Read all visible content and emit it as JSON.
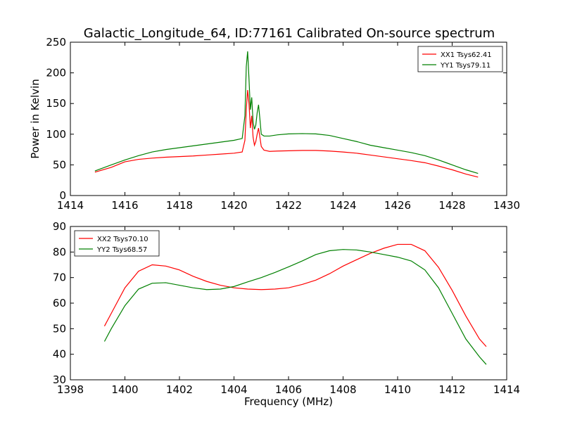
{
  "title": "Galactic_Longitude_64, ID:77161 Calibrated On-source spectrum",
  "chart_data": [
    {
      "type": "line",
      "ylabel": "Power in Kelvin",
      "xlabel": "",
      "xlim": [
        1414,
        1430
      ],
      "ylim": [
        0,
        250
      ],
      "xticks": [
        "1414",
        "1416",
        "1418",
        "1420",
        "1422",
        "1424",
        "1426",
        "1428",
        "1430"
      ],
      "yticks": [
        "0",
        "50",
        "100",
        "150",
        "200",
        "250"
      ],
      "legend": "top-right",
      "series": [
        {
          "name": "XX1 Tsys62.41",
          "color": "#ff0000",
          "x": [
            1414.9,
            1415.5,
            1416,
            1416.5,
            1417,
            1417.5,
            1418,
            1418.5,
            1419,
            1419.5,
            1420,
            1420.3,
            1420.4,
            1420.45,
            1420.5,
            1420.55,
            1420.6,
            1420.65,
            1420.7,
            1420.75,
            1420.8,
            1420.85,
            1420.9,
            1420.95,
            1421,
            1421.1,
            1421.3,
            1421.6,
            1422,
            1422.5,
            1423,
            1423.5,
            1424,
            1424.5,
            1425,
            1425.5,
            1426,
            1426.5,
            1427,
            1427.5,
            1428,
            1428.5,
            1428.95
          ],
          "values": [
            38,
            46,
            55,
            59,
            61,
            62.5,
            63.5,
            64.5,
            66,
            67.5,
            69,
            71,
            90,
            140,
            172,
            150,
            110,
            130,
            95,
            82,
            88,
            100,
            110,
            95,
            80,
            74,
            72,
            72.5,
            73,
            73.5,
            73.5,
            72.5,
            71,
            69,
            66,
            63,
            60,
            57,
            53.5,
            48,
            42,
            35,
            30
          ]
        },
        {
          "name": "YY1 Tsys79.11",
          "color": "#008000",
          "x": [
            1414.9,
            1415.5,
            1416,
            1416.5,
            1417,
            1417.5,
            1418,
            1418.5,
            1419,
            1419.5,
            1420,
            1420.3,
            1420.4,
            1420.45,
            1420.5,
            1420.55,
            1420.6,
            1420.65,
            1420.7,
            1420.75,
            1420.8,
            1420.85,
            1420.9,
            1420.95,
            1421,
            1421.1,
            1421.3,
            1421.6,
            1422,
            1422.5,
            1423,
            1423.5,
            1424,
            1424.5,
            1425,
            1425.5,
            1426,
            1426.5,
            1427,
            1427.5,
            1428,
            1428.5,
            1428.95
          ],
          "values": [
            40,
            50,
            58,
            65,
            71,
            75,
            78,
            81,
            84,
            87,
            90,
            93,
            130,
            210,
            235,
            190,
            140,
            160,
            120,
            108,
            115,
            135,
            148,
            125,
            100,
            97,
            97,
            99,
            100.5,
            101,
            100.5,
            98,
            93,
            88,
            82,
            78,
            74,
            70,
            65,
            58,
            50,
            42,
            36
          ]
        }
      ]
    },
    {
      "type": "line",
      "ylabel": "",
      "xlabel": "Frequency (MHz)",
      "xlim": [
        1398,
        1414
      ],
      "ylim": [
        30,
        90
      ],
      "xticks": [
        "1398",
        "1400",
        "1402",
        "1404",
        "1406",
        "1408",
        "1410",
        "1412",
        "1414"
      ],
      "yticks": [
        "30",
        "40",
        "50",
        "60",
        "70",
        "80",
        "90"
      ],
      "legend": "top-left",
      "series": [
        {
          "name": "XX2 Tsys70.10",
          "color": "#ff0000",
          "x": [
            1399.25,
            1399.5,
            1400,
            1400.5,
            1401,
            1401.5,
            1402,
            1402.5,
            1403,
            1403.5,
            1404,
            1404.5,
            1405,
            1405.5,
            1406,
            1406.5,
            1407,
            1407.5,
            1408,
            1408.5,
            1409,
            1409.5,
            1410,
            1410.5,
            1411,
            1411.5,
            1412,
            1412.5,
            1413,
            1413.25
          ],
          "values": [
            51,
            56,
            66,
            72.5,
            75,
            74.5,
            73,
            70.5,
            68.5,
            67,
            66,
            65.5,
            65.3,
            65.5,
            66,
            67.3,
            69,
            71.5,
            74.5,
            77,
            79.5,
            81.5,
            83,
            83,
            80.5,
            74,
            65,
            55,
            46,
            43
          ]
        },
        {
          "name": "YY2 Tsys68.57",
          "color": "#008000",
          "x": [
            1399.25,
            1399.5,
            1400,
            1400.5,
            1401,
            1401.5,
            1402,
            1402.5,
            1403,
            1403.5,
            1404,
            1404.5,
            1405,
            1405.5,
            1406,
            1406.5,
            1407,
            1407.5,
            1408,
            1408.5,
            1409,
            1409.5,
            1410,
            1410.5,
            1411,
            1411.5,
            1412,
            1412.5,
            1413,
            1413.25
          ],
          "values": [
            45,
            50,
            59,
            65.5,
            67.8,
            68,
            67,
            66,
            65.3,
            65.5,
            66.5,
            68.3,
            70,
            72,
            74.2,
            76.5,
            79,
            80.5,
            81,
            80.8,
            80,
            79,
            78,
            76.5,
            73,
            66,
            56,
            46,
            39,
            36
          ]
        }
      ]
    }
  ]
}
